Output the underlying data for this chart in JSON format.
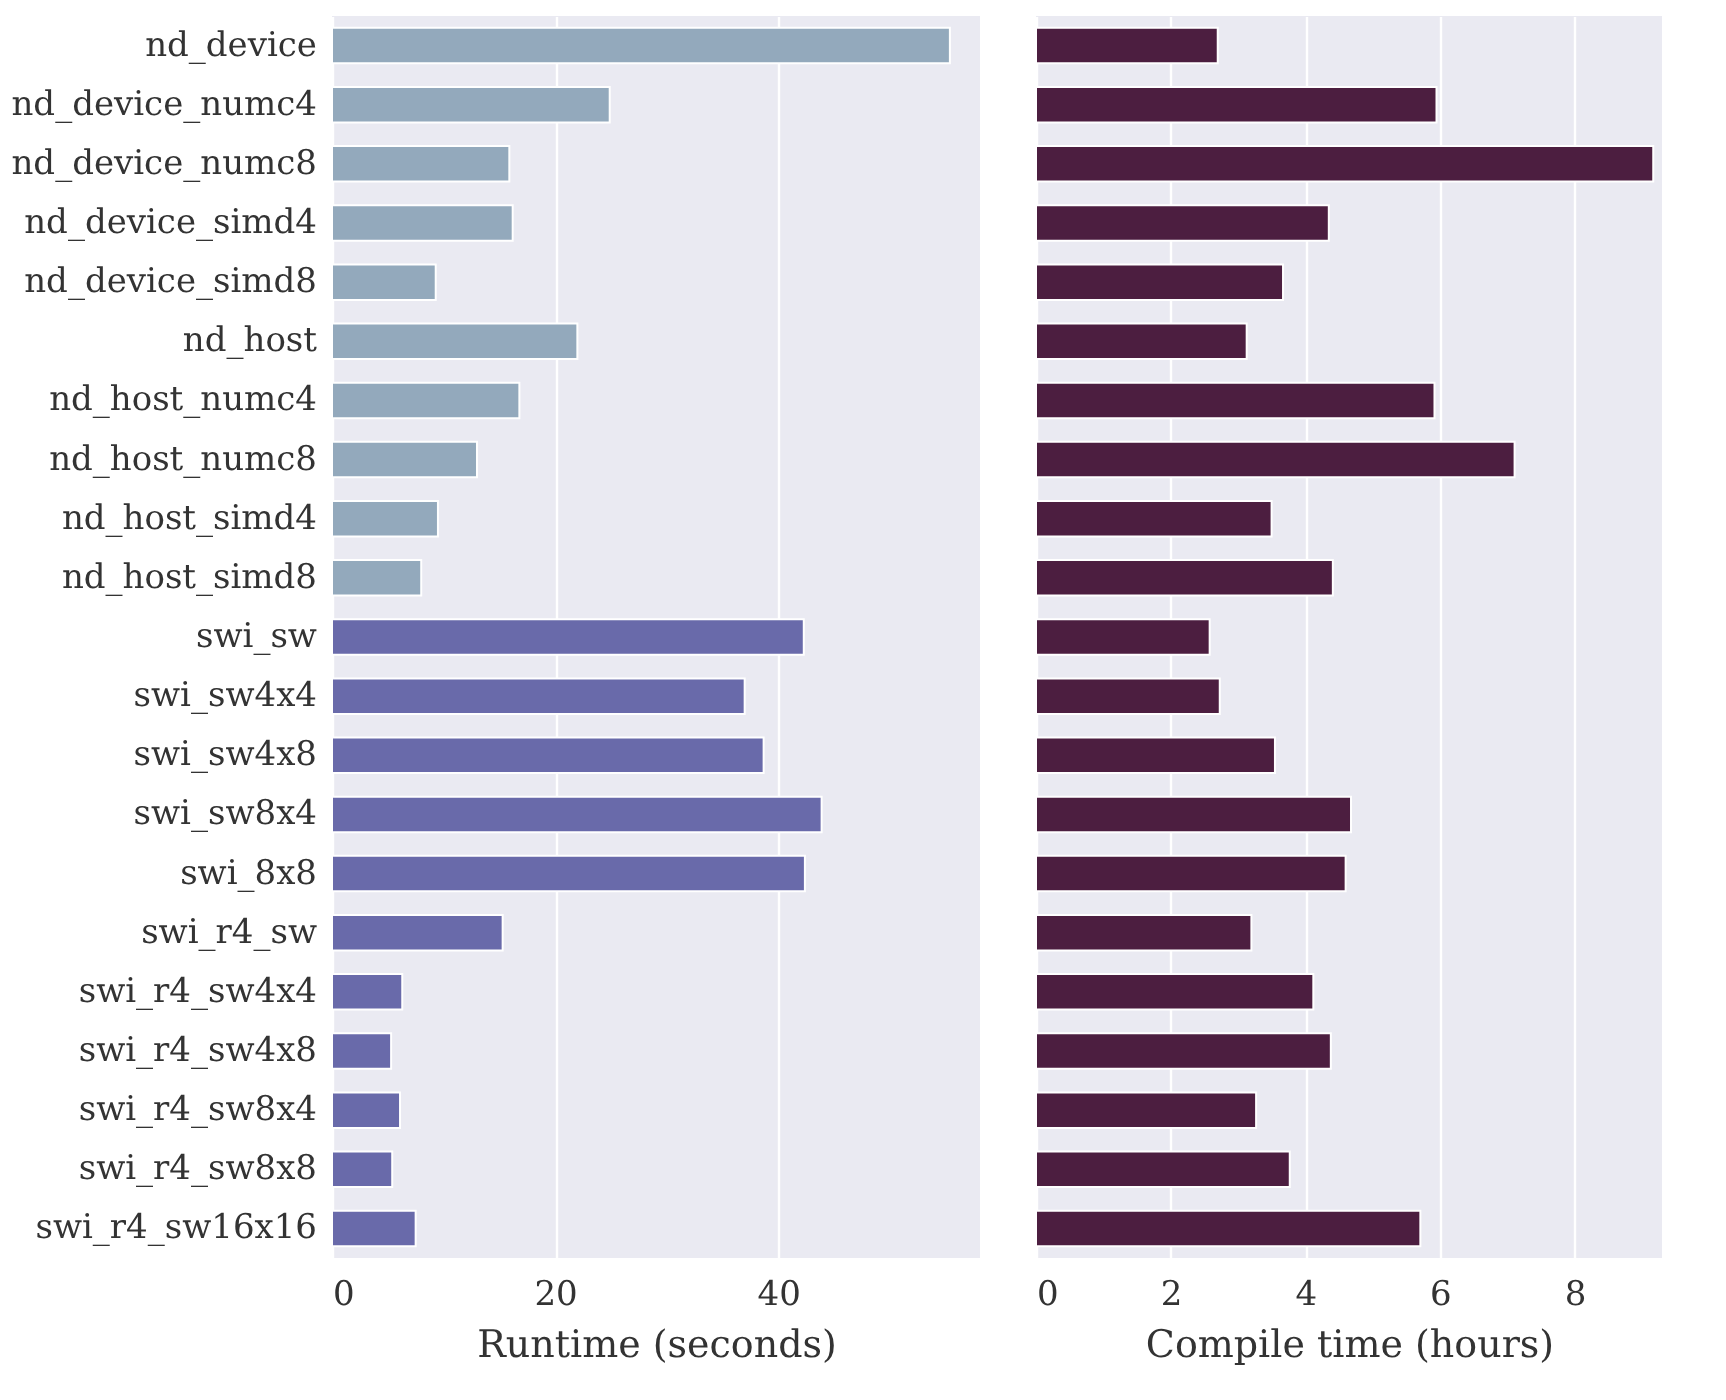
{
  "chart_data": [
    {
      "type": "bar",
      "orientation": "horizontal",
      "xlabel": "Runtime (seconds)",
      "grid": "x",
      "xlim": [
        0,
        58.1
      ],
      "xticks": [
        0,
        20,
        40
      ],
      "categories": [
        "nd_device",
        "nd_device_numc4",
        "nd_device_numc8",
        "nd_device_simd4",
        "nd_device_simd8",
        "nd_host",
        "nd_host_numc4",
        "nd_host_numc8",
        "nd_host_simd4",
        "nd_host_simd8",
        "swi_sw",
        "swi_sw4x4",
        "swi_sw4x8",
        "swi_sw8x4",
        "swi_8x8",
        "swi_r4_sw",
        "swi_r4_sw4x4",
        "swi_r4_sw4x8",
        "swi_r4_sw8x4",
        "swi_r4_sw8x8",
        "swi_r4_sw16x16"
      ],
      "values": [
        55.4,
        24.9,
        15.9,
        16.2,
        9.3,
        22.0,
        16.8,
        13.0,
        9.5,
        8.0,
        42.3,
        37.0,
        38.7,
        43.9,
        42.4,
        15.3,
        6.3,
        5.3,
        6.1,
        5.4,
        7.5
      ],
      "colors": [
        "#93a9bc",
        "#93a9bc",
        "#93a9bc",
        "#93a9bc",
        "#93a9bc",
        "#93a9bc",
        "#93a9bc",
        "#93a9bc",
        "#93a9bc",
        "#93a9bc",
        "#696aaa",
        "#696aaa",
        "#696aaa",
        "#696aaa",
        "#696aaa",
        "#696aaa",
        "#696aaa",
        "#696aaa",
        "#696aaa",
        "#696aaa",
        "#696aaa"
      ]
    },
    {
      "type": "bar",
      "orientation": "horizontal",
      "xlabel": "Compile time (hours)",
      "grid": "x",
      "xlim": [
        0,
        9.3
      ],
      "xticks": [
        0,
        2,
        4,
        6,
        8
      ],
      "tick_labels": "x",
      "categories": [
        "nd_device",
        "nd_device_numc4",
        "nd_device_numc8",
        "nd_device_simd4",
        "nd_device_simd8",
        "nd_host",
        "nd_host_numc4",
        "nd_host_numc8",
        "nd_host_simd4",
        "nd_host_simd8",
        "swi_sw",
        "swi_sw4x4",
        "swi_sw4x8",
        "swi_sw8x4",
        "swi_8x8",
        "swi_r4_sw",
        "swi_r4_sw4x4",
        "swi_r4_sw4x8",
        "swi_r4_sw8x4",
        "swi_r4_sw8x8",
        "swi_r4_sw16x16"
      ],
      "series": [
        {
          "color": "#4c1e40",
          "values": [
            2.7,
            5.95,
            9.17,
            4.35,
            3.67,
            3.13,
            5.92,
            7.11,
            3.5,
            4.41,
            2.58,
            2.73,
            3.55,
            4.68,
            4.6,
            3.2,
            4.12,
            4.38,
            3.27,
            3.77,
            5.71
          ]
        }
      ]
    }
  ]
}
